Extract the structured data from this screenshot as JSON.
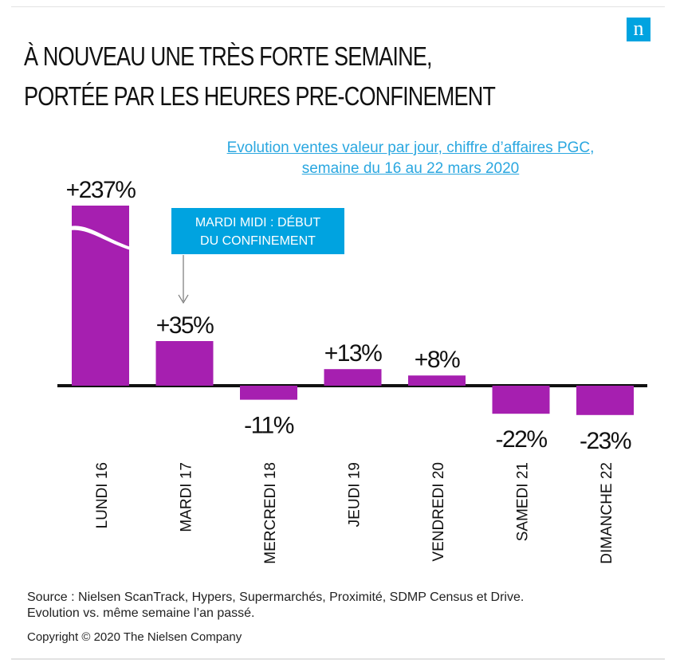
{
  "header": {
    "title_line1": "À NOUVEAU UNE TRÈS FORTE SEMAINE,",
    "title_line2": "PORTÉE PAR LES HEURES PRE-CONFINEMENT",
    "logo_letter": "n",
    "subtitle_line1": "Evolution ventes valeur par jour, chiffre d’affaires PGC,",
    "subtitle_line2": "semaine du 16 au 22 mars 2020"
  },
  "annotation": {
    "text_line1": "MARDI MIDI : DÉBUT",
    "text_line2": "DU CONFINEMENT"
  },
  "footer": {
    "source": "Source : Nielsen ScanTrack, Hypers, Supermarchés, Proximité, SDMP Census et Drive.",
    "note": "Evolution vs. même semaine l’an passé.",
    "copyright": "Copyright © 2020 The Nielsen Company"
  },
  "colors": {
    "bar": "#a61fb0",
    "accent": "#00a3e0",
    "axis": "#111111"
  },
  "chart_data": {
    "type": "bar",
    "categories": [
      "LUNDI 16",
      "MARDI 17",
      "MERCREDI 18",
      "JEUDI 19",
      "VENDREDI 20",
      "SAMEDI 21",
      "DIMANCHE 22"
    ],
    "values": [
      237,
      35,
      -11,
      13,
      8,
      -22,
      -23
    ],
    "data_labels": [
      "+237%",
      "+35%",
      "-11%",
      "+13%",
      "+8%",
      "-22%",
      "-23%"
    ],
    "axis_break": "LUNDI 16",
    "grid": false
  }
}
